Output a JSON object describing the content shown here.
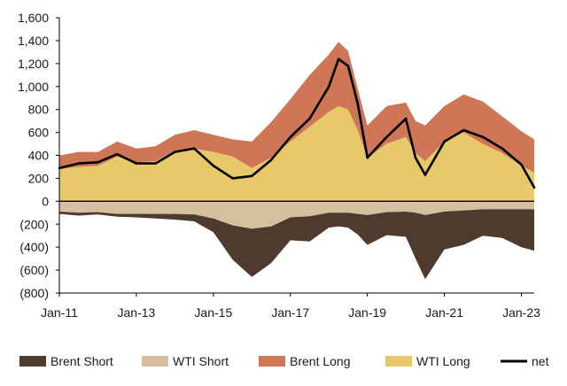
{
  "chart_data": {
    "type": "area",
    "title": "",
    "xlabel": "",
    "ylabel": "",
    "x_tick_labels": [
      "Jan-11",
      "Jan-13",
      "Jan-15",
      "Jan-17",
      "Jan-19",
      "Jan-21",
      "Jan-23"
    ],
    "y_tick_labels": [
      "(800)",
      "(600)",
      "(400)",
      "(200)",
      "0",
      "200",
      "400",
      "600",
      "800",
      "1,000",
      "1,200",
      "1,400",
      "1,600"
    ],
    "ylim": [
      -800,
      1600
    ],
    "xlim": [
      "2011-01",
      "2023-05"
    ],
    "grid": false,
    "legend_position": "bottom",
    "x": [
      "2011-01",
      "2011-07",
      "2012-01",
      "2012-07",
      "2013-01",
      "2013-07",
      "2014-01",
      "2014-07",
      "2015-01",
      "2015-07",
      "2016-01",
      "2016-07",
      "2017-01",
      "2017-07",
      "2018-01",
      "2018-04",
      "2018-07",
      "2018-10",
      "2019-01",
      "2019-07",
      "2020-01",
      "2020-04",
      "2020-07",
      "2021-01",
      "2021-07",
      "2022-01",
      "2022-07",
      "2023-01",
      "2023-05"
    ],
    "series": [
      {
        "name": "WTI Long",
        "color": "#e8c96a",
        "values": [
          280,
          300,
          310,
          390,
          340,
          350,
          440,
          460,
          430,
          390,
          290,
          380,
          520,
          650,
          780,
          830,
          800,
          620,
          380,
          500,
          560,
          420,
          350,
          520,
          600,
          500,
          420,
          310,
          250
        ]
      },
      {
        "name": "Brent Long",
        "color": "#cf7656",
        "values": [
          120,
          130,
          120,
          130,
          120,
          130,
          140,
          160,
          150,
          150,
          230,
          310,
          370,
          450,
          500,
          560,
          510,
          360,
          280,
          330,
          300,
          280,
          310,
          310,
          330,
          370,
          320,
          300,
          290
        ]
      },
      {
        "name": "WTI Short",
        "color": "#d5bf9e",
        "values": [
          -90,
          -100,
          -95,
          -110,
          -110,
          -110,
          -110,
          -115,
          -150,
          -210,
          -240,
          -220,
          -140,
          -130,
          -100,
          -100,
          -100,
          -110,
          -120,
          -95,
          -90,
          -100,
          -120,
          -90,
          -80,
          -70,
          -70,
          -70,
          -70
        ]
      },
      {
        "name": "Brent Short",
        "color": "#4e3b2e",
        "values": [
          -20,
          -25,
          -20,
          -25,
          -30,
          -40,
          -50,
          -60,
          -120,
          -300,
          -420,
          -320,
          -200,
          -220,
          -130,
          -120,
          -130,
          -180,
          -260,
          -200,
          -220,
          -400,
          -560,
          -330,
          -300,
          -230,
          -250,
          -330,
          -360
        ]
      },
      {
        "name": "net",
        "color": "#000000",
        "values": [
          290,
          330,
          340,
          410,
          330,
          330,
          430,
          460,
          310,
          200,
          220,
          360,
          560,
          720,
          1000,
          1240,
          1180,
          850,
          380,
          560,
          720,
          380,
          230,
          520,
          620,
          560,
          460,
          320,
          120
        ]
      }
    ],
    "legend": [
      "Brent Short",
      "WTI Short",
      "Brent Long",
      "WTI Long",
      "net"
    ]
  }
}
